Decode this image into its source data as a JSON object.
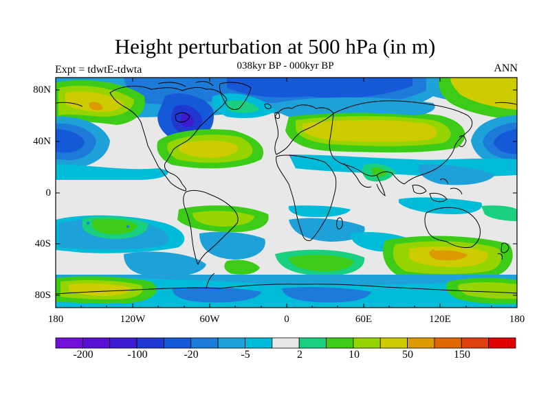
{
  "title": "Height perturbation at 500 hPa (in m)",
  "subtitle": "038kyr BP - 000kyr BP",
  "left_label": "Expt = tdwtE-tdwta",
  "right_label": "ANN",
  "lat_ticks": [
    "80N",
    "40N",
    "0",
    "40S",
    "80S"
  ],
  "lon_ticks": [
    "180",
    "120W",
    "60W",
    "0",
    "60E",
    "120E",
    "180"
  ],
  "colorbar": {
    "labels": [
      "-200",
      "-100",
      "-20",
      "-5",
      "2",
      "10",
      "50",
      "150"
    ],
    "colors": [
      "#7010d8",
      "#5a0fd4",
      "#3c1bd0",
      "#2038d0",
      "#1558d8",
      "#1e7ad8",
      "#1ea0d8",
      "#00bcd8",
      "#e8e8e8",
      "#18d080",
      "#3ccc18",
      "#96d400",
      "#cccc00",
      "#dd9900",
      "#e06800",
      "#e04010",
      "#e00000"
    ]
  }
}
